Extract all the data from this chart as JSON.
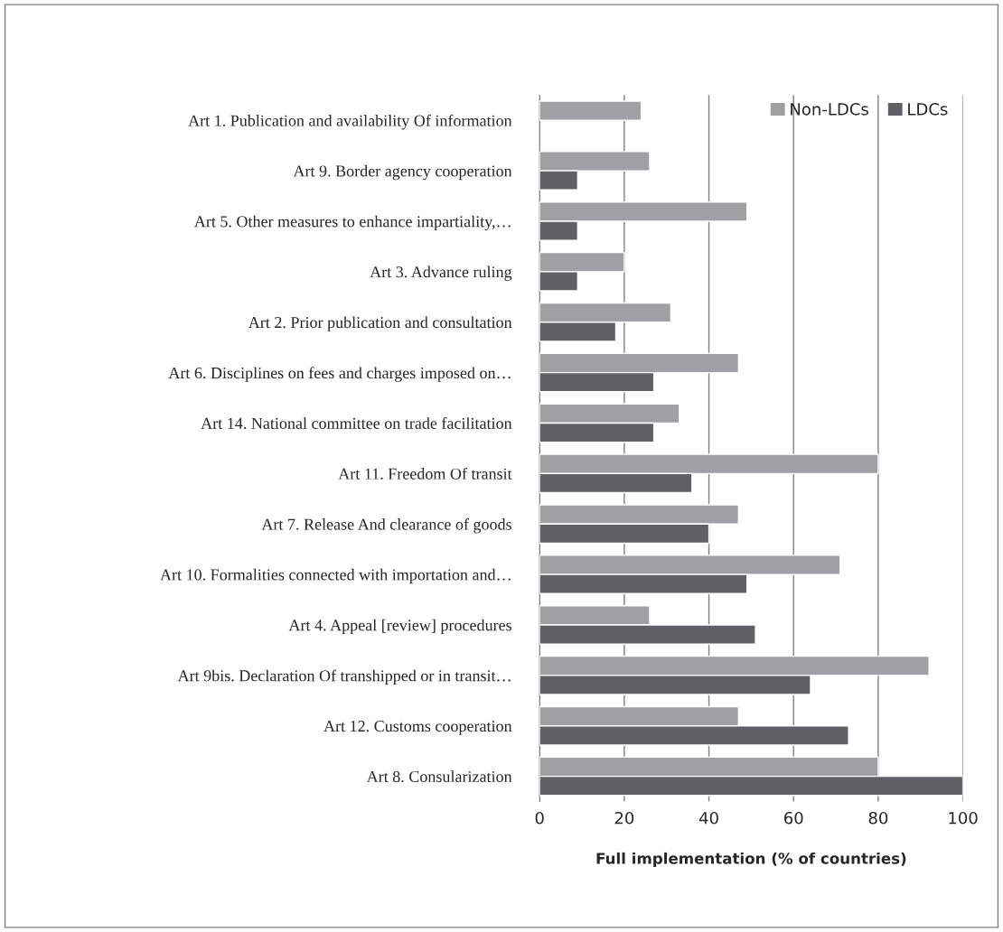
{
  "chart_data": {
    "type": "bar",
    "orientation": "horizontal",
    "categories": [
      "Art 1. Publication and availability Of information",
      "Art 9. Border agency cooperation",
      "Art 5. Other measures to enhance impartiality,…",
      "Art 3. Advance ruling",
      "Art 2. Prior publication and consultation",
      "Art 6. Disciplines on fees and charges imposed on…",
      "Art 14. National committee on trade facilitation",
      "Art 11. Freedom Of transit",
      "Art 7. Release And clearance of goods",
      "Art 10. Formalities connected with importation and…",
      "Art 4. Appeal [review] procedures",
      "Art 9bis. Declaration Of transhipped or in transit…",
      "Art 12. Customs cooperation",
      "Art 8. Consularization"
    ],
    "series": [
      {
        "name": "Non-LDCs",
        "color": "#a0a0a4",
        "values": [
          24,
          26,
          49,
          20,
          31,
          47,
          33,
          80,
          47,
          71,
          26,
          92,
          47,
          80
        ]
      },
      {
        "name": "LDCs",
        "color": "#606066",
        "values": [
          null,
          9,
          9,
          9,
          18,
          27,
          27,
          36,
          40,
          49,
          51,
          64,
          73,
          100
        ]
      }
    ],
    "xlabel": "Full implementation (% of countries)",
    "xlim": [
      0,
      100
    ],
    "xticks": [
      0,
      20,
      40,
      60,
      80,
      100
    ],
    "grid": "x",
    "legend": "top right"
  }
}
